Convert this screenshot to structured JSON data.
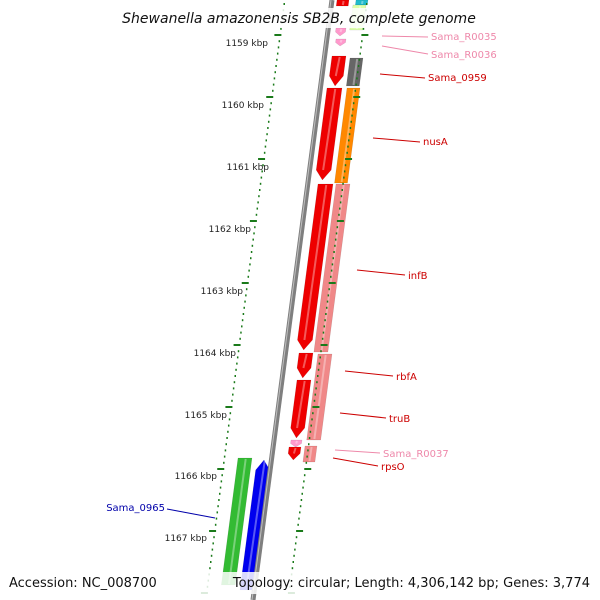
{
  "title": "Shewanella amazonensis SB2B, complete genome",
  "accession": "Accession: NC_008700",
  "topology": "Topology: circular; Length: 4,306,142 bp; Genes: 3,774",
  "colors": {
    "tick": "#1a7a1a",
    "backbone": "#7f7f7f",
    "label_red": "#cc0000",
    "label_pink": "#ee88aa",
    "label_blue": "#0000aa"
  },
  "kbp_labels": [
    {
      "text": "1159 kbp"
    },
    {
      "text": "1160 kbp"
    },
    {
      "text": "1161 kbp"
    },
    {
      "text": "1162 kbp"
    },
    {
      "text": "1163 kbp"
    },
    {
      "text": "1164 kbp"
    },
    {
      "text": "1165 kbp"
    },
    {
      "text": "1166 kbp"
    },
    {
      "text": "1167 kbp"
    }
  ],
  "genes": [
    {
      "name": "Sama_R0035",
      "label_color": "#ee88aa"
    },
    {
      "name": "Sama_R0036",
      "label_color": "#ee88aa"
    },
    {
      "name": "Sama_0959",
      "label_color": "#cc0000"
    },
    {
      "name": "nusA",
      "label_color": "#cc0000"
    },
    {
      "name": "infB",
      "label_color": "#cc0000"
    },
    {
      "name": "rbfA",
      "label_color": "#cc0000"
    },
    {
      "name": "truB",
      "label_color": "#cc0000"
    },
    {
      "name": "Sama_R0037",
      "label_color": "#ee88aa"
    },
    {
      "name": "rpsO",
      "label_color": "#cc0000"
    },
    {
      "name": "Sama_0965",
      "label_color": "#0000aa"
    }
  ]
}
